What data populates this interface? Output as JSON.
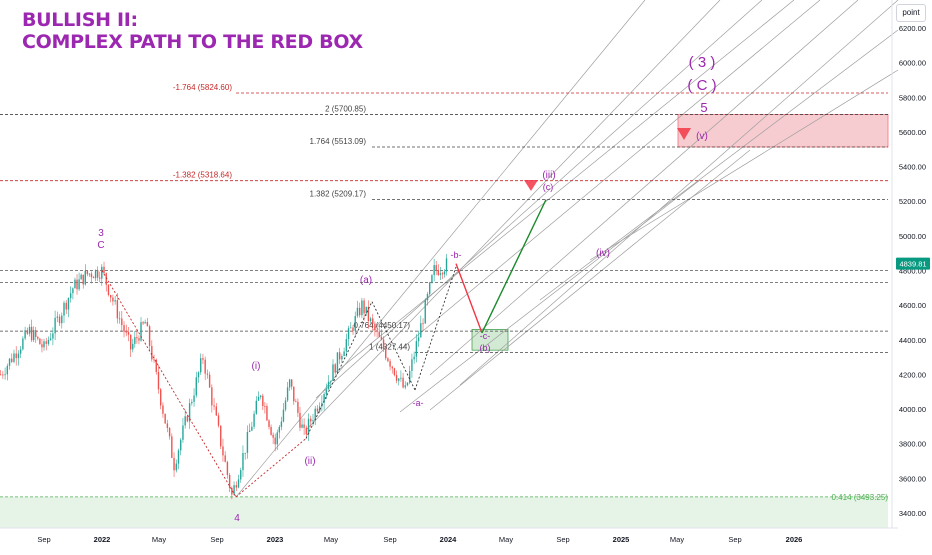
{
  "title": {
    "line1": "BULLISH II:",
    "line2": "COMPLEX PATH TO THE RED BOX"
  },
  "scale_button": "point",
  "colors": {
    "purple": "#9c27b0",
    "candle_up": "#26a69a",
    "candle_down": "#ef5350",
    "red": "#f23645",
    "green": "#1b8a2a",
    "fib_dark": "#444444",
    "fib_red": "#c62828",
    "channel": "#9e9e9e",
    "price_tag": "#089981",
    "zone_green": "#c8e6c9",
    "zone_red": "#f5b7bd"
  },
  "chart_data": {
    "type": "line",
    "title": "BULLISH II: COMPLEX PATH TO THE RED BOX",
    "xlabel": "",
    "ylabel": "",
    "ylim": [
      3350,
      6300
    ],
    "grid": false,
    "x_ticks": [
      "Sep",
      "2022",
      "May",
      "Sep",
      "2023",
      "May",
      "Sep",
      "2024",
      "May",
      "Sep",
      "2025",
      "May",
      "Sep",
      "2026"
    ],
    "y_ticks": [
      "6200.00",
      "6000.00",
      "5800.00",
      "5600.00",
      "5400.00",
      "5200.00",
      "5000.00",
      "4800.00",
      "4600.00",
      "4400.00",
      "4200.00",
      "4000.00",
      "3800.00",
      "3600.00",
      "3400.00"
    ],
    "y_tick_values": [
      6200,
      6000,
      5800,
      5600,
      5400,
      5200,
      5000,
      4800,
      4600,
      4400,
      4200,
      4000,
      3800,
      3600,
      3400
    ],
    "last_price": {
      "label": "4839.81",
      "value": 4839.81
    },
    "series": [
      {
        "values": [
          {
            "x": "2021-06",
            "y": 4200
          },
          {
            "x": "2021-08",
            "y": 4450
          },
          {
            "x": "2021-09",
            "y": 4350
          },
          {
            "x": "2021-11",
            "y": 4700
          },
          {
            "x": "2021-12",
            "y": 4780
          },
          {
            "x": "2022-01",
            "y": 4800
          },
          {
            "x": "2022-03",
            "y": 4350
          },
          {
            "x": "2022-04",
            "y": 4500
          },
          {
            "x": "2022-06",
            "y": 3680
          },
          {
            "x": "2022-08",
            "y": 4300
          },
          {
            "x": "2022-10",
            "y": 3500
          },
          {
            "x": "2022-12",
            "y": 4100
          },
          {
            "x": "2023-01",
            "y": 3800
          },
          {
            "x": "2023-02",
            "y": 4150
          },
          {
            "x": "2023-03",
            "y": 3850
          },
          {
            "x": "2023-07",
            "y": 4600
          },
          {
            "x": "2023-10",
            "y": 4100
          },
          {
            "x": "2023-12",
            "y": 4800
          },
          {
            "x": "2024-01",
            "y": 4839.81
          }
        ]
      }
    ],
    "fib_levels": [
      {
        "label": "-1.764 (5824.60)",
        "y": 5824.6,
        "style": "red"
      },
      {
        "label": "2 (5700.85)",
        "y": 5700.85,
        "style": "dark"
      },
      {
        "label": "1.764 (5513.09)",
        "y": 5513.09,
        "style": "dark"
      },
      {
        "label": "-1.382 (5318.64)",
        "y": 5318.64,
        "style": "red"
      },
      {
        "label": "1.382 (5209.17)",
        "y": 5209.17,
        "style": "dark"
      },
      {
        "label": "0.764 (4450.17)",
        "y": 4450.17,
        "style": "dark"
      },
      {
        "label": "1 (4327.44)",
        "y": 4327.44,
        "style": "dark"
      },
      {
        "label": "0.414 (3493.25)",
        "y": 3493.25,
        "style": "green"
      }
    ],
    "projection": [
      {
        "x": "2024-01",
        "y": 4839.81,
        "color": "red"
      },
      {
        "x": "2024-03",
        "y": 4440,
        "color": "green"
      },
      {
        "x": "2024-08",
        "y": 5209.17,
        "color": "green"
      }
    ],
    "zones": [
      {
        "name": "green",
        "x_from": "2024-02",
        "x_to": "2024-03",
        "y_from": 4340,
        "y_to": 4460
      },
      {
        "name": "red",
        "x_from": "2025-05",
        "x_to": "2026-12",
        "y_from": 5513.09,
        "y_to": 5700.85
      }
    ],
    "annotations": [
      "3",
      "C",
      "4",
      "(i)",
      "(ii)",
      "(a)",
      "-a-",
      "-b-",
      "-c-",
      "(b)",
      "(iii)",
      "(c)",
      "(iv)",
      "( 3 )",
      "( C )",
      "5",
      "(v)"
    ]
  }
}
